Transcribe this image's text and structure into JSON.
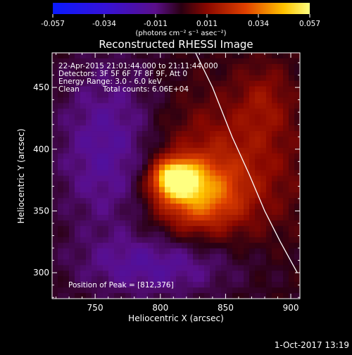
{
  "chart_data": {
    "type": "heatmap",
    "title": "Reconstructed RHESSI Image",
    "xlabel": "Heliocentric X (arcsec)",
    "ylabel": "Heliocentric Y (arcsec)",
    "xlim": [
      717,
      907
    ],
    "ylim": [
      279,
      478
    ],
    "x_ticks": [
      750,
      800,
      850,
      900
    ],
    "y_ticks": [
      300,
      350,
      400,
      450
    ],
    "colorbar": {
      "ticks": [
        "-0.057",
        "-0.034",
        "-0.011",
        "0.011",
        "0.034",
        "0.057"
      ],
      "range": [
        -0.057,
        0.057
      ],
      "unit_label": "(photons cm⁻² s⁻¹ asec⁻²)"
    },
    "annotations": {
      "time": "22-Apr-2015 21:01:44.000 to 21:11:44.000",
      "detectors": "Detectors: 3F 5F 6F 7F 8F 9F, Att 0",
      "energy": "Energy Range: 3.0 - 6.0 keV",
      "clean": "Clean",
      "counts": "Total counts: 6.06E+04",
      "peak": "Position of Peak = [812,376]"
    },
    "peak": {
      "x": 812,
      "y": 376,
      "value": 0.057
    },
    "limb_curve": [
      [
        827,
        478
      ],
      [
        840,
        450
      ],
      [
        855,
        410
      ],
      [
        868,
        380
      ],
      [
        880,
        350
      ],
      [
        892,
        325
      ],
      [
        905,
        300
      ]
    ],
    "footer_timestamp": "1-Oct-2017 13:19",
    "colors": {
      "background": "#000000",
      "text": "#ffffff"
    }
  }
}
